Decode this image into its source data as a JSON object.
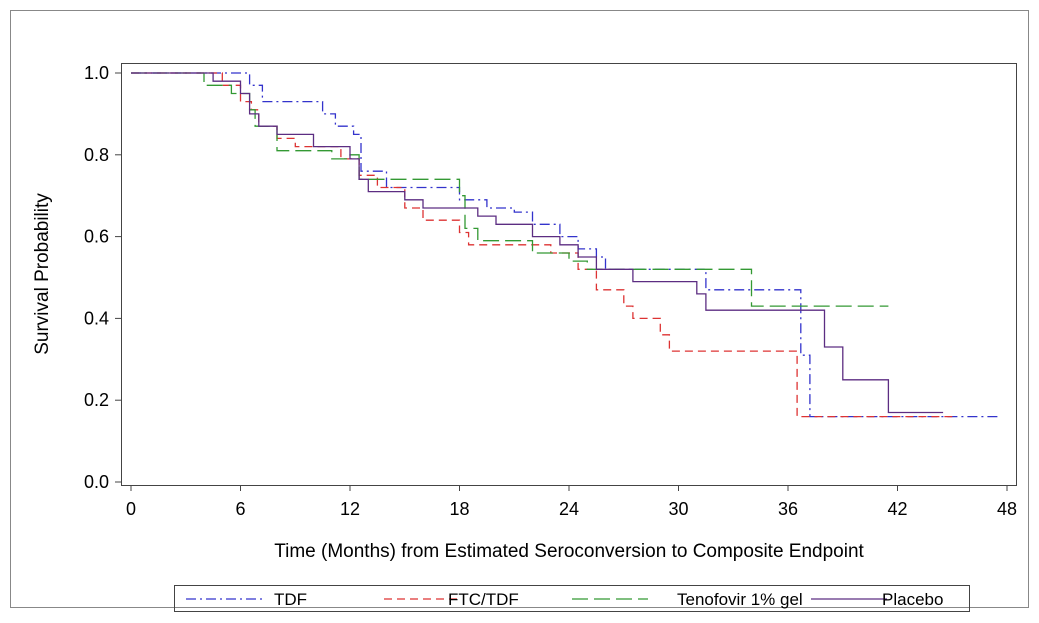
{
  "chart_data": {
    "type": "line",
    "step": true,
    "xlabel": "Time (Months) from Estimated Seroconversion to Composite Endpoint",
    "ylabel": "Survival Probability",
    "xlim": [
      0,
      48
    ],
    "ylim": [
      0,
      1
    ],
    "x_ticks": [
      "0",
      "6",
      "12",
      "18",
      "24",
      "30",
      "36",
      "42",
      "48"
    ],
    "y_ticks": [
      "0.0",
      "0.2",
      "0.4",
      "0.6",
      "0.8",
      "1.0"
    ],
    "grid": false,
    "legend_position": "bottom",
    "series": [
      {
        "name": "TDF",
        "color": "#3333cc",
        "dash": "dashdot",
        "points": [
          [
            0,
            1.0
          ],
          [
            6.5,
            1.0
          ],
          [
            6.5,
            0.97
          ],
          [
            7.2,
            0.97
          ],
          [
            7.2,
            0.93
          ],
          [
            10.5,
            0.93
          ],
          [
            10.5,
            0.9
          ],
          [
            11.2,
            0.9
          ],
          [
            11.2,
            0.87
          ],
          [
            12.2,
            0.87
          ],
          [
            12.2,
            0.85
          ],
          [
            12.6,
            0.85
          ],
          [
            12.6,
            0.76
          ],
          [
            14.0,
            0.76
          ],
          [
            14.0,
            0.72
          ],
          [
            18.0,
            0.72
          ],
          [
            18.0,
            0.69
          ],
          [
            19.5,
            0.69
          ],
          [
            19.5,
            0.67
          ],
          [
            21.0,
            0.67
          ],
          [
            21.0,
            0.66
          ],
          [
            22.0,
            0.66
          ],
          [
            22.0,
            0.63
          ],
          [
            23.5,
            0.63
          ],
          [
            23.5,
            0.6
          ],
          [
            24.5,
            0.6
          ],
          [
            24.5,
            0.57
          ],
          [
            25.5,
            0.57
          ],
          [
            25.5,
            0.55
          ],
          [
            26.0,
            0.55
          ],
          [
            26.0,
            0.52
          ],
          [
            31.5,
            0.52
          ],
          [
            31.5,
            0.47
          ],
          [
            36.7,
            0.47
          ],
          [
            36.7,
            0.31
          ],
          [
            37.2,
            0.31
          ],
          [
            37.2,
            0.16
          ],
          [
            47.5,
            0.16
          ]
        ]
      },
      {
        "name": "FTC/TDF",
        "color": "#dd3333",
        "dash": "dashed",
        "points": [
          [
            0,
            1.0
          ],
          [
            5.0,
            1.0
          ],
          [
            5.0,
            0.97
          ],
          [
            6.0,
            0.97
          ],
          [
            6.0,
            0.93
          ],
          [
            6.6,
            0.93
          ],
          [
            6.6,
            0.91
          ],
          [
            7.0,
            0.91
          ],
          [
            7.0,
            0.87
          ],
          [
            8.0,
            0.87
          ],
          [
            8.0,
            0.84
          ],
          [
            9.0,
            0.84
          ],
          [
            9.0,
            0.82
          ],
          [
            11.5,
            0.82
          ],
          [
            11.5,
            0.79
          ],
          [
            12.5,
            0.79
          ],
          [
            12.5,
            0.75
          ],
          [
            13.5,
            0.75
          ],
          [
            13.5,
            0.72
          ],
          [
            15.0,
            0.72
          ],
          [
            15.0,
            0.67
          ],
          [
            16.0,
            0.67
          ],
          [
            16.0,
            0.64
          ],
          [
            18.0,
            0.64
          ],
          [
            18.0,
            0.61
          ],
          [
            18.5,
            0.61
          ],
          [
            18.5,
            0.58
          ],
          [
            23.0,
            0.58
          ],
          [
            23.0,
            0.56
          ],
          [
            24.5,
            0.56
          ],
          [
            24.5,
            0.52
          ],
          [
            25.5,
            0.52
          ],
          [
            25.5,
            0.47
          ],
          [
            27.0,
            0.47
          ],
          [
            27.0,
            0.43
          ],
          [
            27.5,
            0.43
          ],
          [
            27.5,
            0.4
          ],
          [
            29.0,
            0.4
          ],
          [
            29.0,
            0.36
          ],
          [
            29.5,
            0.36
          ],
          [
            29.5,
            0.32
          ],
          [
            36.5,
            0.32
          ],
          [
            36.5,
            0.16
          ],
          [
            45.0,
            0.16
          ]
        ]
      },
      {
        "name": "Tenofovir 1% gel",
        "color": "#339933",
        "dash": "longdash",
        "points": [
          [
            0,
            1.0
          ],
          [
            4.0,
            1.0
          ],
          [
            4.0,
            0.97
          ],
          [
            5.5,
            0.97
          ],
          [
            5.5,
            0.95
          ],
          [
            6.5,
            0.95
          ],
          [
            6.5,
            0.91
          ],
          [
            6.8,
            0.91
          ],
          [
            6.8,
            0.87
          ],
          [
            8.0,
            0.87
          ],
          [
            8.0,
            0.81
          ],
          [
            11.0,
            0.81
          ],
          [
            11.0,
            0.79
          ],
          [
            12.0,
            0.79
          ],
          [
            12.0,
            0.8
          ],
          [
            12.5,
            0.8
          ],
          [
            12.5,
            0.74
          ],
          [
            18.0,
            0.74
          ],
          [
            18.0,
            0.7
          ],
          [
            18.3,
            0.7
          ],
          [
            18.3,
            0.62
          ],
          [
            19.0,
            0.62
          ],
          [
            19.0,
            0.59
          ],
          [
            22.0,
            0.59
          ],
          [
            22.0,
            0.56
          ],
          [
            24.0,
            0.56
          ],
          [
            24.0,
            0.54
          ],
          [
            25.0,
            0.54
          ],
          [
            25.0,
            0.52
          ],
          [
            34.0,
            0.52
          ],
          [
            34.0,
            0.43
          ],
          [
            41.5,
            0.43
          ]
        ]
      },
      {
        "name": "Placebo",
        "color": "#5c2d82",
        "dash": "solid",
        "points": [
          [
            0,
            1.0
          ],
          [
            4.5,
            1.0
          ],
          [
            4.5,
            0.98
          ],
          [
            6.0,
            0.98
          ],
          [
            6.0,
            0.95
          ],
          [
            6.5,
            0.95
          ],
          [
            6.5,
            0.9
          ],
          [
            7.0,
            0.9
          ],
          [
            7.0,
            0.87
          ],
          [
            8.0,
            0.87
          ],
          [
            8.0,
            0.85
          ],
          [
            10.0,
            0.85
          ],
          [
            10.0,
            0.82
          ],
          [
            12.0,
            0.82
          ],
          [
            12.0,
            0.79
          ],
          [
            12.5,
            0.79
          ],
          [
            12.5,
            0.74
          ],
          [
            13.0,
            0.74
          ],
          [
            13.0,
            0.71
          ],
          [
            15.0,
            0.71
          ],
          [
            15.0,
            0.69
          ],
          [
            16.0,
            0.69
          ],
          [
            16.0,
            0.67
          ],
          [
            19.0,
            0.67
          ],
          [
            19.0,
            0.65
          ],
          [
            20.0,
            0.65
          ],
          [
            20.0,
            0.63
          ],
          [
            22.0,
            0.63
          ],
          [
            22.0,
            0.6
          ],
          [
            23.5,
            0.6
          ],
          [
            23.5,
            0.58
          ],
          [
            24.5,
            0.58
          ],
          [
            24.5,
            0.55
          ],
          [
            25.5,
            0.55
          ],
          [
            25.5,
            0.52
          ],
          [
            27.5,
            0.52
          ],
          [
            27.5,
            0.49
          ],
          [
            31.0,
            0.49
          ],
          [
            31.0,
            0.46
          ],
          [
            31.5,
            0.46
          ],
          [
            31.5,
            0.42
          ],
          [
            38.0,
            0.42
          ],
          [
            38.0,
            0.33
          ],
          [
            39.0,
            0.33
          ],
          [
            39.0,
            0.25
          ],
          [
            41.5,
            0.25
          ],
          [
            41.5,
            0.17
          ],
          [
            44.5,
            0.17
          ]
        ]
      }
    ]
  }
}
